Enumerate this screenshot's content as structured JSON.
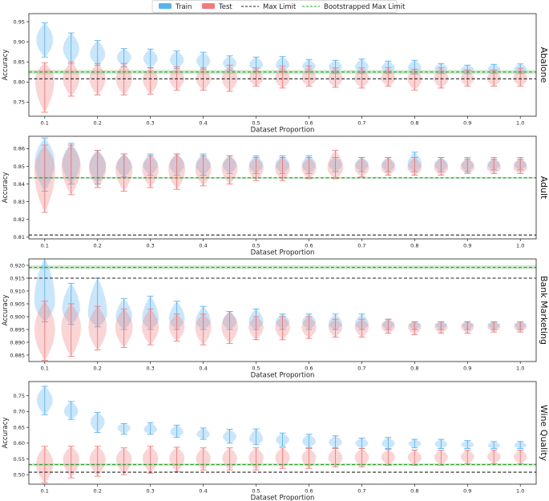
{
  "legend": {
    "train": "Train",
    "test": "Test",
    "max_limit": "Max Limit",
    "bootstrapped_max_limit": "Bootstrapped Max Limit"
  },
  "colors": {
    "train": "#5bb2f0",
    "test": "#f07b7b",
    "max_limit": "#222222",
    "bootstrapped": "#2ca02c"
  },
  "chart_data": [
    {
      "type": "violin",
      "title": "Abalone",
      "xlabel": "Dataset Proportion",
      "ylabel": "Accuracy",
      "ylim": [
        0.715,
        0.97
      ],
      "yticks": [
        0.75,
        0.8,
        0.85,
        0.9,
        0.95
      ],
      "ytick_labels": [
        "0.75",
        "0.80",
        "0.85",
        "0.90",
        "0.95"
      ],
      "x": [
        0.1,
        0.15,
        0.2,
        0.25,
        0.3,
        0.35,
        0.4,
        0.45,
        0.5,
        0.55,
        0.6,
        0.65,
        0.7,
        0.75,
        0.8,
        0.85,
        0.9,
        0.95,
        1.0
      ],
      "xticks": [
        0.1,
        0.2,
        0.3,
        0.4,
        0.5,
        0.6,
        0.7,
        0.8,
        0.9,
        1.0
      ],
      "xtick_labels": [
        "0.1",
        "0.2",
        "0.3",
        "0.4",
        "0.5",
        "0.6",
        "0.7",
        "0.8",
        "0.9",
        "1.0"
      ],
      "max_limit": 0.808,
      "bootstrapped_max_limit": 0.825,
      "bootstrapped_band": [
        0.82,
        0.83
      ],
      "series": [
        {
          "name": "Train",
          "center": [
            0.905,
            0.882,
            0.868,
            0.862,
            0.858,
            0.855,
            0.852,
            0.847,
            0.843,
            0.842,
            0.839,
            0.838,
            0.838,
            0.836,
            0.836,
            0.834,
            0.833,
            0.833,
            0.833
          ],
          "min": [
            0.862,
            0.846,
            0.842,
            0.838,
            0.836,
            0.834,
            0.832,
            0.829,
            0.826,
            0.826,
            0.825,
            0.822,
            0.822,
            0.822,
            0.82,
            0.822,
            0.821,
            0.822,
            0.822
          ],
          "max": [
            0.947,
            0.922,
            0.903,
            0.883,
            0.882,
            0.877,
            0.874,
            0.865,
            0.862,
            0.863,
            0.856,
            0.854,
            0.857,
            0.852,
            0.854,
            0.846,
            0.842,
            0.844,
            0.845
          ]
        },
        {
          "name": "Test",
          "center": [
            0.805,
            0.81,
            0.808,
            0.808,
            0.808,
            0.808,
            0.808,
            0.808,
            0.808,
            0.808,
            0.808,
            0.808,
            0.808,
            0.808,
            0.808,
            0.808,
            0.808,
            0.808,
            0.808
          ],
          "min": [
            0.725,
            0.765,
            0.768,
            0.768,
            0.77,
            0.78,
            0.78,
            0.777,
            0.79,
            0.785,
            0.79,
            0.787,
            0.785,
            0.79,
            0.78,
            0.785,
            0.79,
            0.79,
            0.79
          ],
          "max": [
            0.848,
            0.85,
            0.846,
            0.846,
            0.835,
            0.838,
            0.835,
            0.842,
            0.835,
            0.84,
            0.84,
            0.835,
            0.835,
            0.836,
            0.832,
            0.835,
            0.83,
            0.83,
            0.834
          ]
        }
      ]
    },
    {
      "type": "violin",
      "title": "Adult",
      "xlabel": "Dataset Proportion",
      "ylabel": "Accuracy",
      "ylim": [
        0.809,
        0.867
      ],
      "yticks": [
        0.81,
        0.82,
        0.83,
        0.84,
        0.85,
        0.86
      ],
      "ytick_labels": [
        "0.81",
        "0.82",
        "0.83",
        "0.84",
        "0.85",
        "0.86"
      ],
      "x": [
        0.1,
        0.15,
        0.2,
        0.25,
        0.3,
        0.35,
        0.4,
        0.45,
        0.5,
        0.55,
        0.6,
        0.65,
        0.7,
        0.75,
        0.8,
        0.85,
        0.9,
        0.95,
        1.0
      ],
      "xticks": [
        0.1,
        0.2,
        0.3,
        0.4,
        0.5,
        0.6,
        0.7,
        0.8,
        0.9,
        1.0
      ],
      "xtick_labels": [
        "0.1",
        "0.2",
        "0.3",
        "0.4",
        "0.5",
        "0.6",
        "0.7",
        "0.8",
        "0.9",
        "1.0"
      ],
      "max_limit": 0.8112,
      "bootstrapped_max_limit": 0.8435,
      "bootstrapped_band": [
        0.843,
        0.844
      ],
      "series": [
        {
          "name": "Train",
          "center": [
            0.853,
            0.852,
            0.851,
            0.85,
            0.851,
            0.851,
            0.851,
            0.851,
            0.851,
            0.851,
            0.851,
            0.851,
            0.851,
            0.851,
            0.851,
            0.851,
            0.851,
            0.851,
            0.851
          ],
          "min": [
            0.836,
            0.84,
            0.84,
            0.844,
            0.845,
            0.845,
            0.845,
            0.846,
            0.846,
            0.846,
            0.846,
            0.847,
            0.847,
            0.847,
            0.847,
            0.847,
            0.847,
            0.848,
            0.848
          ],
          "max": [
            0.866,
            0.863,
            0.859,
            0.857,
            0.857,
            0.857,
            0.857,
            0.856,
            0.856,
            0.856,
            0.856,
            0.855,
            0.855,
            0.855,
            0.858,
            0.855,
            0.854,
            0.854,
            0.854
          ]
        },
        {
          "name": "Test",
          "center": [
            0.848,
            0.85,
            0.849,
            0.849,
            0.849,
            0.849,
            0.849,
            0.849,
            0.849,
            0.849,
            0.849,
            0.849,
            0.849,
            0.849,
            0.849,
            0.849,
            0.849,
            0.849,
            0.849
          ],
          "min": [
            0.824,
            0.834,
            0.838,
            0.836,
            0.838,
            0.837,
            0.839,
            0.84,
            0.842,
            0.842,
            0.843,
            0.843,
            0.844,
            0.845,
            0.845,
            0.845,
            0.846,
            0.846,
            0.846
          ],
          "max": [
            0.862,
            0.862,
            0.859,
            0.857,
            0.856,
            0.857,
            0.856,
            0.856,
            0.855,
            0.855,
            0.855,
            0.859,
            0.855,
            0.855,
            0.855,
            0.855,
            0.855,
            0.855,
            0.855
          ]
        }
      ]
    },
    {
      "type": "violin",
      "title": "Bank Marketing",
      "xlabel": "Dataset Proportion",
      "ylabel": "Accuracy",
      "ylim": [
        0.8825,
        0.9225
      ],
      "yticks": [
        0.885,
        0.89,
        0.895,
        0.9,
        0.905,
        0.91,
        0.915,
        0.92
      ],
      "ytick_labels": [
        "0.885",
        "0.890",
        "0.895",
        "0.900",
        "0.905",
        "0.910",
        "0.915",
        "0.920"
      ],
      "x": [
        0.1,
        0.15,
        0.2,
        0.25,
        0.3,
        0.35,
        0.4,
        0.45,
        0.5,
        0.55,
        0.6,
        0.65,
        0.7,
        0.75,
        0.8,
        0.85,
        0.9,
        0.95,
        1.0
      ],
      "xticks": [
        0.1,
        0.2,
        0.3,
        0.4,
        0.5,
        0.6,
        0.7,
        0.8,
        0.9,
        1.0
      ],
      "xtick_labels": [
        "0.1",
        "0.2",
        "0.3",
        "0.4",
        "0.5",
        "0.6",
        "0.7",
        "0.8",
        "0.9",
        "1.0"
      ],
      "max_limit": 0.915,
      "bootstrapped_max_limit": 0.9192,
      "bootstrapped_band": [
        0.9185,
        0.92
      ],
      "series": [
        {
          "name": "Train",
          "center": [
            0.906,
            0.903,
            0.901,
            0.9,
            0.899,
            0.899,
            0.898,
            0.898,
            0.898,
            0.898,
            0.898,
            0.897,
            0.897,
            0.897,
            0.897,
            0.897,
            0.897,
            0.897,
            0.897
          ],
          "min": [
            0.898,
            0.897,
            0.896,
            0.895,
            0.895,
            0.895,
            0.895,
            0.895,
            0.895,
            0.895,
            0.895,
            0.895,
            0.895,
            0.895,
            0.895,
            0.895,
            0.895,
            0.895,
            0.895
          ],
          "max": [
            0.923,
            0.913,
            0.915,
            0.907,
            0.908,
            0.906,
            0.904,
            0.902,
            0.903,
            0.901,
            0.901,
            0.901,
            0.901,
            0.899,
            0.898,
            0.898,
            0.898,
            0.898,
            0.898
          ]
        },
        {
          "name": "Test",
          "center": [
            0.895,
            0.896,
            0.896,
            0.896,
            0.896,
            0.896,
            0.896,
            0.896,
            0.896,
            0.896,
            0.896,
            0.896,
            0.896,
            0.896,
            0.896,
            0.896,
            0.896,
            0.896,
            0.896
          ],
          "min": [
            0.883,
            0.8845,
            0.887,
            0.888,
            0.889,
            0.8905,
            0.889,
            0.8895,
            0.891,
            0.891,
            0.8915,
            0.892,
            0.892,
            0.8935,
            0.893,
            0.8935,
            0.8935,
            0.894,
            0.894
          ],
          "max": [
            0.906,
            0.905,
            0.904,
            0.903,
            0.903,
            0.901,
            0.901,
            0.902,
            0.9,
            0.9,
            0.9,
            0.899,
            0.899,
            0.899,
            0.898,
            0.898,
            0.898,
            0.898,
            0.898
          ]
        }
      ]
    },
    {
      "type": "violin",
      "title": "Wine Quality",
      "xlabel": "Dataset Proportion",
      "ylabel": "Accuracy",
      "ylim": [
        0.47,
        0.795
      ],
      "yticks": [
        0.5,
        0.55,
        0.6,
        0.65,
        0.7,
        0.75
      ],
      "ytick_labels": [
        "0.50",
        "0.55",
        "0.60",
        "0.65",
        "0.70",
        "0.75"
      ],
      "x": [
        0.1,
        0.15,
        0.2,
        0.25,
        0.3,
        0.35,
        0.4,
        0.45,
        0.5,
        0.55,
        0.6,
        0.65,
        0.7,
        0.75,
        0.8,
        0.85,
        0.9,
        0.95,
        1.0
      ],
      "xticks": [
        0.1,
        0.2,
        0.3,
        0.4,
        0.5,
        0.6,
        0.7,
        0.8,
        0.9,
        1.0
      ],
      "xtick_labels": [
        "0.1",
        "0.2",
        "0.3",
        "0.4",
        "0.5",
        "0.6",
        "0.7",
        "0.8",
        "0.9",
        "1.0"
      ],
      "max_limit": 0.508,
      "bootstrapped_max_limit": 0.532,
      "bootstrapped_band": [
        0.528,
        0.536
      ],
      "series": [
        {
          "name": "Train",
          "center": [
            0.735,
            0.7,
            0.668,
            0.65,
            0.642,
            0.635,
            0.628,
            0.62,
            0.612,
            0.61,
            0.605,
            0.603,
            0.6,
            0.598,
            0.598,
            0.596,
            0.595,
            0.592,
            0.593
          ],
          "min": [
            0.69,
            0.675,
            0.634,
            0.628,
            0.628,
            0.618,
            0.612,
            0.6,
            0.595,
            0.59,
            0.586,
            0.585,
            0.583,
            0.583,
            0.585,
            0.583,
            0.583,
            0.583,
            0.583
          ],
          "max": [
            0.78,
            0.732,
            0.697,
            0.662,
            0.665,
            0.657,
            0.648,
            0.644,
            0.645,
            0.632,
            0.628,
            0.623,
            0.616,
            0.618,
            0.612,
            0.612,
            0.608,
            0.605,
            0.605
          ]
        },
        {
          "name": "Test",
          "center": [
            0.535,
            0.55,
            0.55,
            0.552,
            0.553,
            0.553,
            0.552,
            0.553,
            0.555,
            0.555,
            0.555,
            0.555,
            0.555,
            0.556,
            0.556,
            0.557,
            0.557,
            0.557,
            0.557
          ],
          "min": [
            0.475,
            0.49,
            0.495,
            0.5,
            0.505,
            0.51,
            0.515,
            0.515,
            0.515,
            0.52,
            0.52,
            0.525,
            0.525,
            0.53,
            0.53,
            0.53,
            0.535,
            0.535,
            0.535
          ],
          "max": [
            0.59,
            0.59,
            0.59,
            0.585,
            0.59,
            0.587,
            0.585,
            0.585,
            0.585,
            0.585,
            0.583,
            0.583,
            0.583,
            0.58,
            0.578,
            0.578,
            0.578,
            0.578,
            0.578
          ]
        }
      ]
    }
  ]
}
